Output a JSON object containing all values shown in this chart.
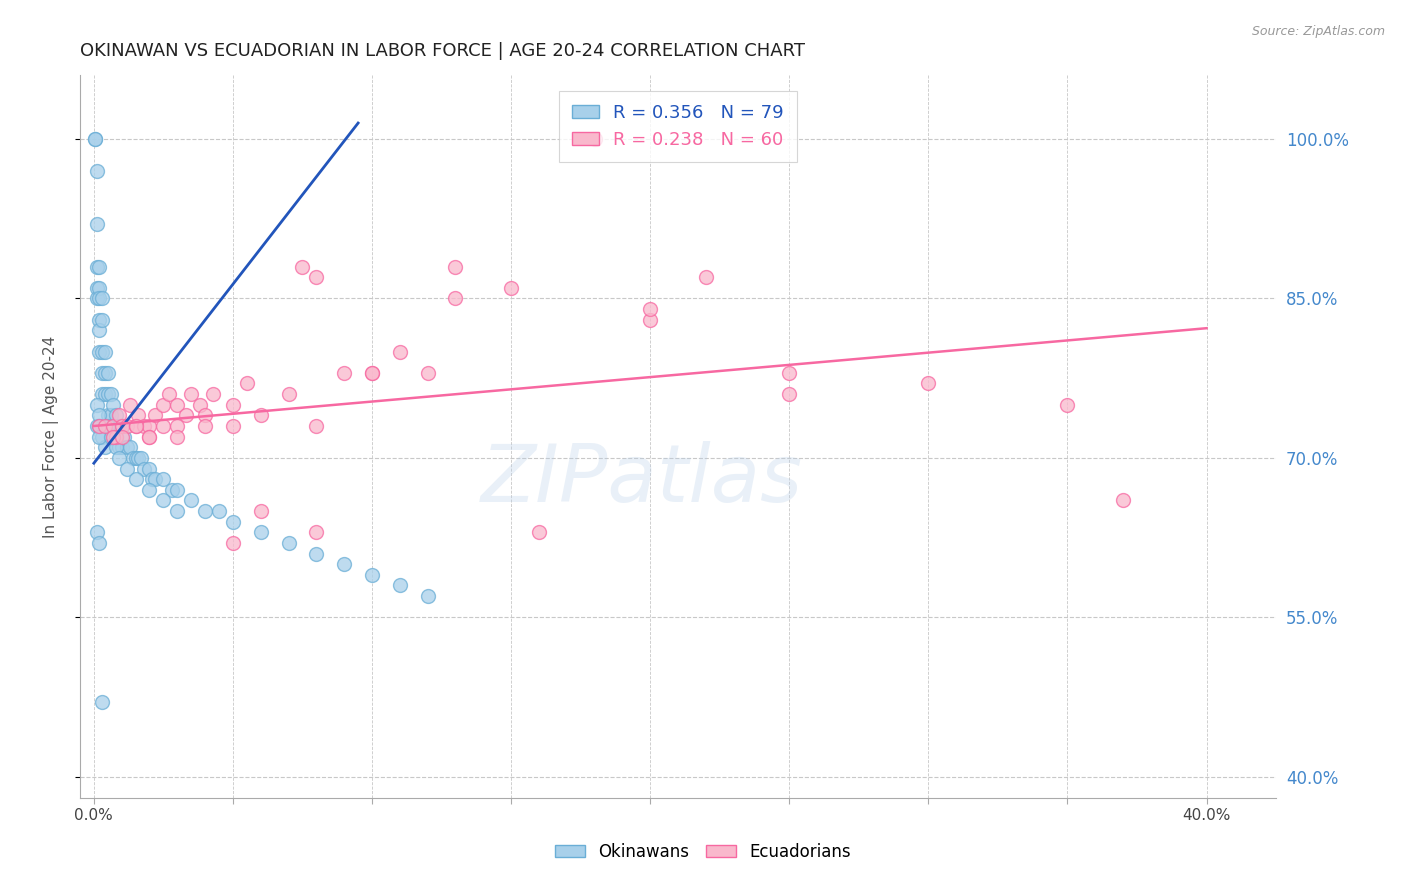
{
  "title": "OKINAWAN VS ECUADORIAN IN LABOR FORCE | AGE 20-24 CORRELATION CHART",
  "source": "Source: ZipAtlas.com",
  "ylabel": "In Labor Force | Age 20-24",
  "y_tick_labels_right": [
    "100.0%",
    "85.0%",
    "70.0%",
    "55.0%",
    "40.0%"
  ],
  "y_tick_vals": [
    1.0,
    0.85,
    0.7,
    0.55,
    0.4
  ],
  "x_tick_vals": [
    0.0,
    0.05,
    0.1,
    0.15,
    0.2,
    0.25,
    0.3,
    0.35,
    0.4
  ],
  "xlim": [
    -0.005,
    0.425
  ],
  "ylim": [
    0.38,
    1.06
  ],
  "watermark": "ZIPatlas",
  "background_color": "#ffffff",
  "grid_color": "#c8c8c8",
  "title_color": "#222222",
  "right_tick_color": "#4488cc",
  "okinawan_color": "#a8d0ea",
  "ecuadorian_color": "#f9b8cc",
  "okinawan_edge_color": "#6aaed6",
  "ecuadorian_edge_color": "#f768a1",
  "blue_line_color": "#2255bb",
  "pink_line_color": "#f768a1",
  "okinawan_x": [
    0.0005,
    0.0005,
    0.001,
    0.001,
    0.001,
    0.001,
    0.001,
    0.002,
    0.002,
    0.002,
    0.002,
    0.002,
    0.002,
    0.003,
    0.003,
    0.003,
    0.003,
    0.003,
    0.004,
    0.004,
    0.004,
    0.005,
    0.005,
    0.005,
    0.006,
    0.006,
    0.006,
    0.007,
    0.007,
    0.008,
    0.008,
    0.009,
    0.009,
    0.01,
    0.01,
    0.011,
    0.012,
    0.013,
    0.014,
    0.015,
    0.016,
    0.017,
    0.018,
    0.02,
    0.021,
    0.022,
    0.025,
    0.028,
    0.03,
    0.035,
    0.04,
    0.045,
    0.05,
    0.06,
    0.07,
    0.08,
    0.09,
    0.1,
    0.11,
    0.12,
    0.003,
    0.004,
    0.001,
    0.001,
    0.002,
    0.002,
    0.002,
    0.005,
    0.006,
    0.008,
    0.009,
    0.012,
    0.015,
    0.02,
    0.025,
    0.03,
    0.001,
    0.002,
    0.003
  ],
  "okinawan_y": [
    1.0,
    1.0,
    0.97,
    0.92,
    0.88,
    0.86,
    0.85,
    0.88,
    0.86,
    0.85,
    0.83,
    0.82,
    0.8,
    0.85,
    0.83,
    0.8,
    0.78,
    0.76,
    0.8,
    0.78,
    0.76,
    0.78,
    0.76,
    0.74,
    0.76,
    0.74,
    0.72,
    0.75,
    0.73,
    0.74,
    0.72,
    0.73,
    0.71,
    0.73,
    0.71,
    0.72,
    0.71,
    0.71,
    0.7,
    0.7,
    0.7,
    0.7,
    0.69,
    0.69,
    0.68,
    0.68,
    0.68,
    0.67,
    0.67,
    0.66,
    0.65,
    0.65,
    0.64,
    0.63,
    0.62,
    0.61,
    0.6,
    0.59,
    0.58,
    0.57,
    0.72,
    0.71,
    0.75,
    0.73,
    0.74,
    0.73,
    0.72,
    0.73,
    0.72,
    0.71,
    0.7,
    0.69,
    0.68,
    0.67,
    0.66,
    0.65,
    0.63,
    0.62,
    0.47
  ],
  "ecuadorian_x": [
    0.002,
    0.004,
    0.007,
    0.008,
    0.009,
    0.01,
    0.012,
    0.013,
    0.015,
    0.016,
    0.018,
    0.02,
    0.022,
    0.025,
    0.027,
    0.03,
    0.033,
    0.035,
    0.038,
    0.04,
    0.043,
    0.05,
    0.055,
    0.06,
    0.07,
    0.075,
    0.08,
    0.09,
    0.1,
    0.11,
    0.12,
    0.13,
    0.15,
    0.18,
    0.2,
    0.22,
    0.25,
    0.3,
    0.35,
    0.37,
    0.007,
    0.01,
    0.015,
    0.02,
    0.025,
    0.03,
    0.04,
    0.05,
    0.06,
    0.08,
    0.1,
    0.13,
    0.16,
    0.2,
    0.25,
    0.02,
    0.03,
    0.05,
    0.08
  ],
  "ecuadorian_y": [
    0.73,
    0.73,
    0.73,
    0.72,
    0.74,
    0.73,
    0.73,
    0.75,
    0.73,
    0.74,
    0.73,
    0.73,
    0.74,
    0.75,
    0.76,
    0.75,
    0.74,
    0.76,
    0.75,
    0.74,
    0.76,
    0.75,
    0.77,
    0.74,
    0.76,
    0.88,
    0.87,
    0.78,
    0.78,
    0.8,
    0.78,
    0.88,
    0.86,
    1.0,
    0.83,
    0.87,
    0.78,
    0.77,
    0.75,
    0.66,
    0.72,
    0.72,
    0.73,
    0.72,
    0.73,
    0.73,
    0.73,
    0.73,
    0.65,
    0.73,
    0.78,
    0.85,
    0.63,
    0.84,
    0.76,
    0.72,
    0.72,
    0.62,
    0.63
  ],
  "blue_line_x": [
    0.0,
    0.095
  ],
  "blue_line_y": [
    0.695,
    1.015
  ],
  "pink_line_x": [
    0.0,
    0.4
  ],
  "pink_line_y": [
    0.73,
    0.822
  ]
}
